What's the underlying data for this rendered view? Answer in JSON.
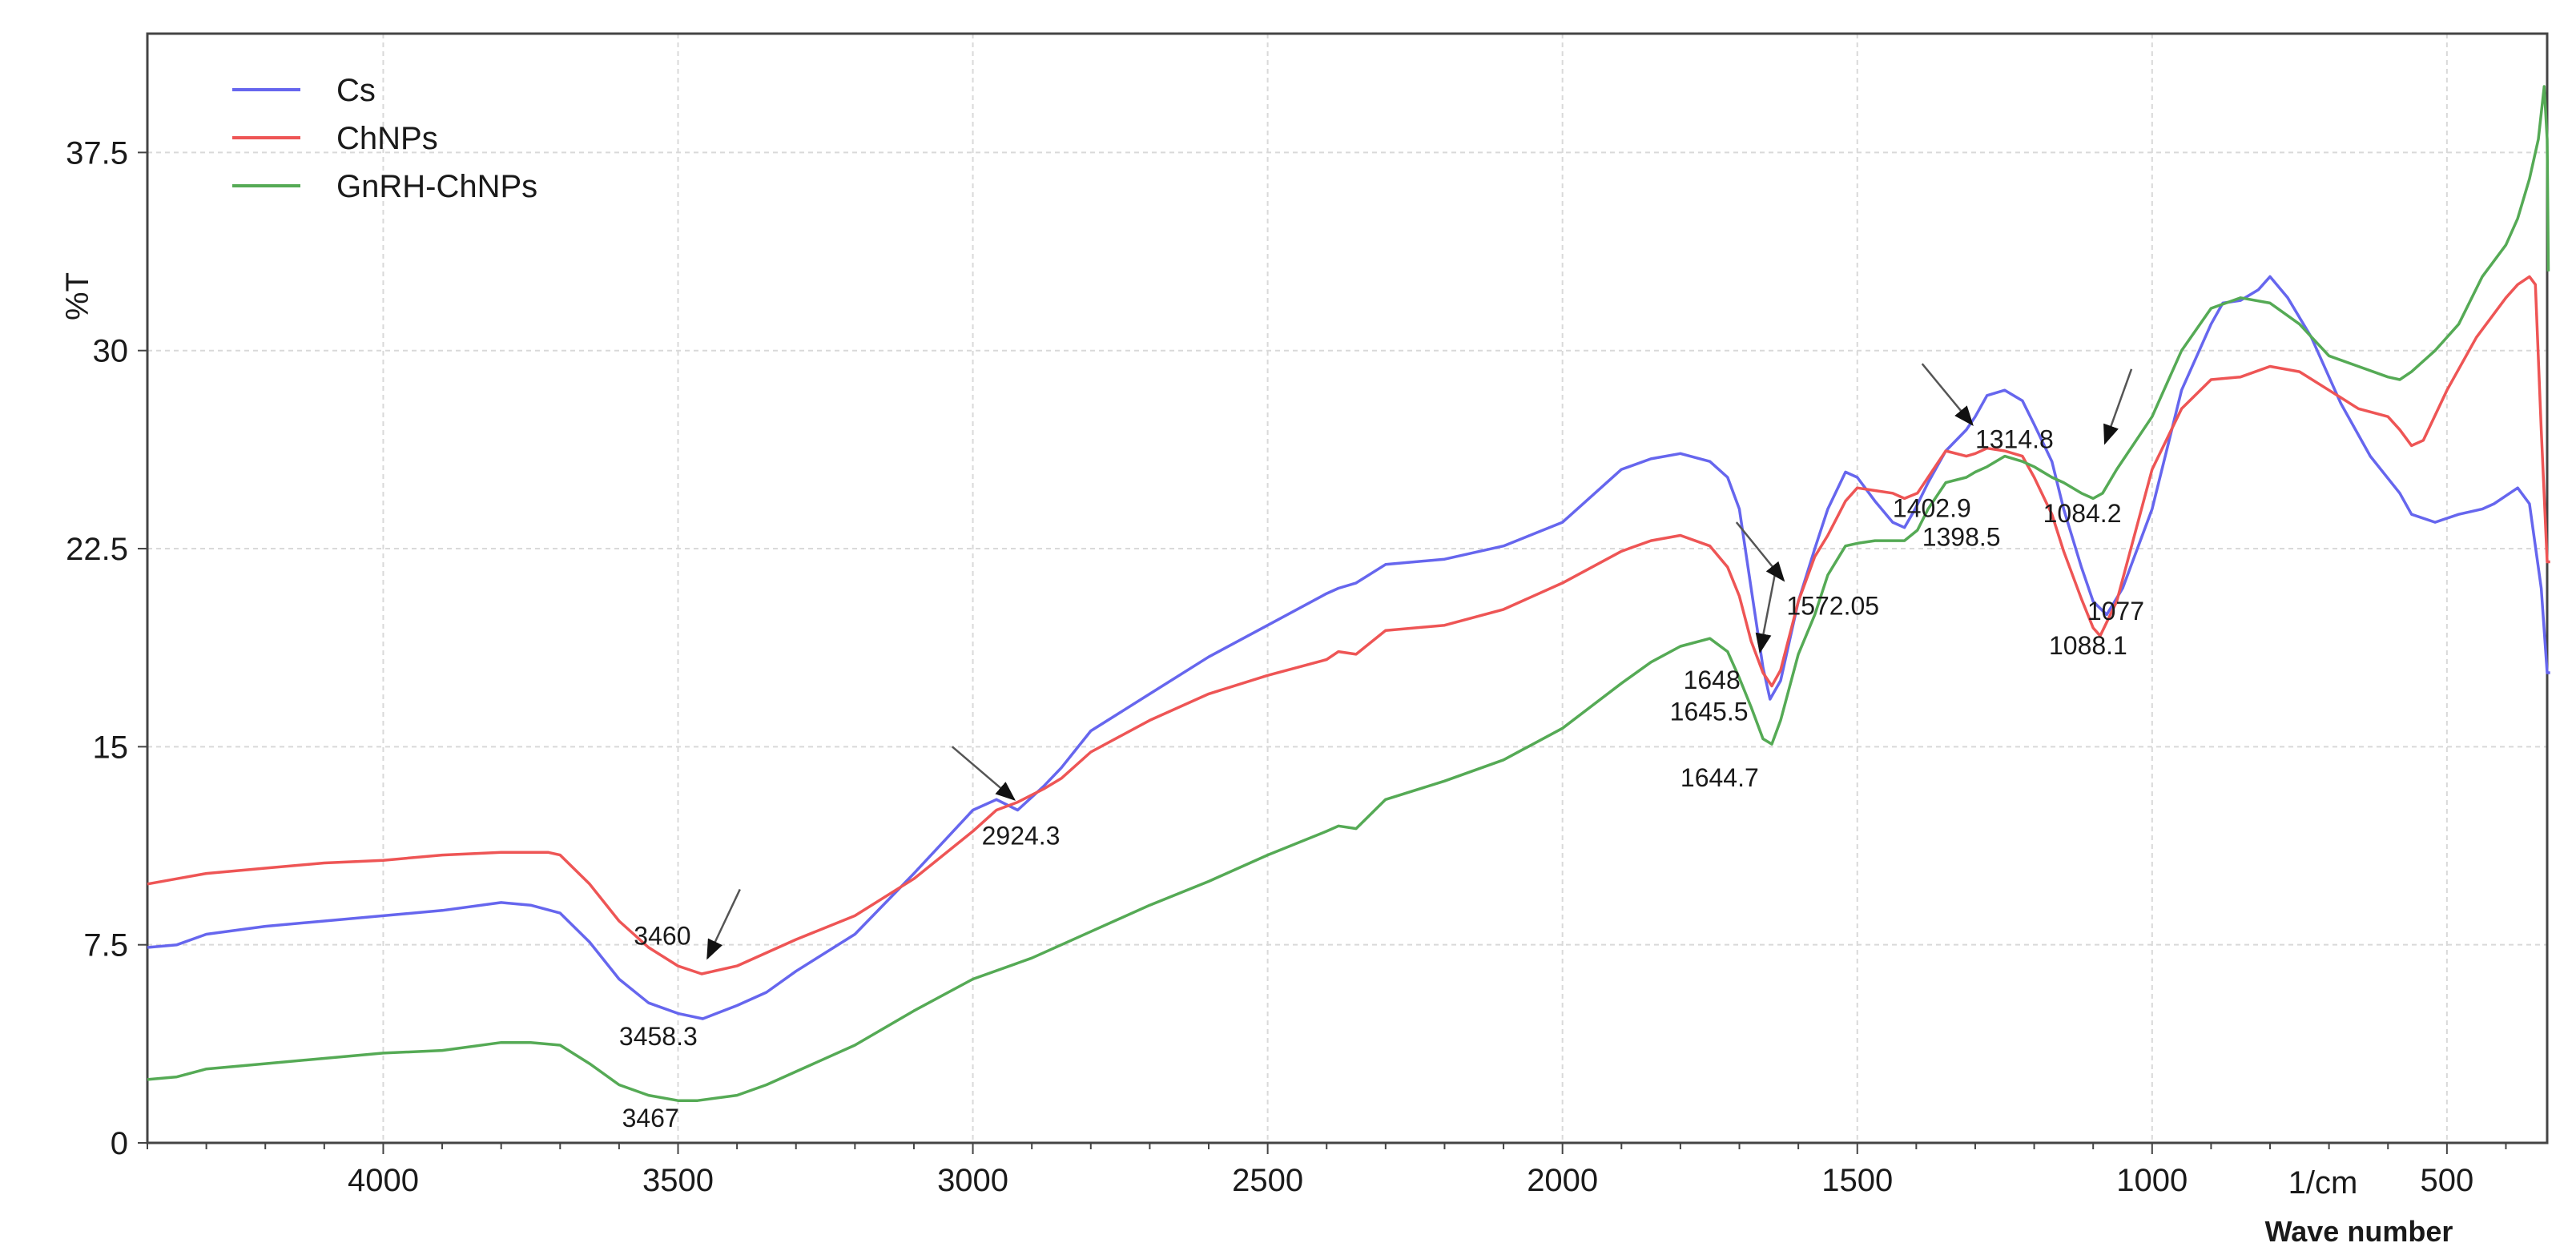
{
  "chart_data": {
    "type": "line",
    "ylabel": "%T",
    "xlabel": "Wave number",
    "x_unit": "1/cm",
    "xlim": [
      4400,
      330
    ],
    "ylim": [
      0,
      42
    ],
    "y_ticks": [
      0,
      7.5,
      15,
      22.5,
      30,
      37.5
    ],
    "y_tick_labels": [
      "0",
      "7.5",
      "15",
      "22.5",
      "30",
      "37.5"
    ],
    "x_ticks": [
      4000,
      3500,
      3000,
      2500,
      2000,
      1500,
      1000,
      500
    ],
    "x_tick_labels": [
      "4000",
      "3500",
      "3000",
      "2500",
      "2000",
      "1500",
      "1000",
      "500"
    ],
    "legend_position": "top-left",
    "grid": true,
    "series": [
      {
        "name": "Cs",
        "color": "#6666ee",
        "points": [
          [
            4400,
            7.4
          ],
          [
            4350,
            7.5
          ],
          [
            4300,
            7.9
          ],
          [
            4200,
            8.2
          ],
          [
            4100,
            8.4
          ],
          [
            4000,
            8.6
          ],
          [
            3900,
            8.8
          ],
          [
            3800,
            9.1
          ],
          [
            3750,
            9.0
          ],
          [
            3700,
            8.7
          ],
          [
            3650,
            7.6
          ],
          [
            3600,
            6.2
          ],
          [
            3550,
            5.3
          ],
          [
            3500,
            4.9
          ],
          [
            3458,
            4.7
          ],
          [
            3400,
            5.2
          ],
          [
            3350,
            5.7
          ],
          [
            3300,
            6.5
          ],
          [
            3200,
            7.9
          ],
          [
            3100,
            10.2
          ],
          [
            3050,
            11.4
          ],
          [
            3000,
            12.6
          ],
          [
            2960,
            13.0
          ],
          [
            2924,
            12.6
          ],
          [
            2880,
            13.5
          ],
          [
            2850,
            14.2
          ],
          [
            2800,
            15.6
          ],
          [
            2700,
            17.0
          ],
          [
            2600,
            18.4
          ],
          [
            2500,
            19.6
          ],
          [
            2400,
            20.8
          ],
          [
            2380,
            21.0
          ],
          [
            2350,
            21.2
          ],
          [
            2300,
            21.9
          ],
          [
            2200,
            22.1
          ],
          [
            2100,
            22.6
          ],
          [
            2000,
            23.5
          ],
          [
            1900,
            25.5
          ],
          [
            1850,
            25.9
          ],
          [
            1800,
            26.1
          ],
          [
            1750,
            25.8
          ],
          [
            1720,
            25.2
          ],
          [
            1700,
            24.0
          ],
          [
            1680,
            21.0
          ],
          [
            1660,
            18.0
          ],
          [
            1648,
            16.8
          ],
          [
            1630,
            17.5
          ],
          [
            1600,
            20.5
          ],
          [
            1572,
            22.5
          ],
          [
            1550,
            24.0
          ],
          [
            1520,
            25.4
          ],
          [
            1500,
            25.2
          ],
          [
            1470,
            24.3
          ],
          [
            1440,
            23.5
          ],
          [
            1420,
            23.3
          ],
          [
            1402,
            24.0
          ],
          [
            1380,
            25.0
          ],
          [
            1350,
            26.2
          ],
          [
            1315,
            27.0
          ],
          [
            1300,
            27.5
          ],
          [
            1280,
            28.3
          ],
          [
            1250,
            28.5
          ],
          [
            1220,
            28.1
          ],
          [
            1200,
            27.2
          ],
          [
            1170,
            25.8
          ],
          [
            1150,
            24.0
          ],
          [
            1120,
            21.8
          ],
          [
            1100,
            20.5
          ],
          [
            1077,
            20.0
          ],
          [
            1050,
            21.0
          ],
          [
            1000,
            24.0
          ],
          [
            950,
            28.5
          ],
          [
            900,
            31.0
          ],
          [
            880,
            31.8
          ],
          [
            850,
            31.9
          ],
          [
            820,
            32.3
          ],
          [
            800,
            32.8
          ],
          [
            770,
            32.0
          ],
          [
            730,
            30.5
          ],
          [
            680,
            28.0
          ],
          [
            630,
            26.0
          ],
          [
            580,
            24.6
          ],
          [
            560,
            23.8
          ],
          [
            520,
            23.5
          ],
          [
            480,
            23.8
          ],
          [
            440,
            24.0
          ],
          [
            420,
            24.2
          ],
          [
            400,
            24.5
          ],
          [
            380,
            24.8
          ],
          [
            360,
            24.2
          ],
          [
            340,
            21.0
          ],
          [
            330,
            17.8
          ],
          [
            325,
            17.8
          ]
        ]
      },
      {
        "name": "ChNPs",
        "color": "#ee5555",
        "points": [
          [
            4400,
            9.8
          ],
          [
            4350,
            10.0
          ],
          [
            4300,
            10.2
          ],
          [
            4200,
            10.4
          ],
          [
            4100,
            10.6
          ],
          [
            4000,
            10.7
          ],
          [
            3900,
            10.9
          ],
          [
            3800,
            11.0
          ],
          [
            3720,
            11.0
          ],
          [
            3700,
            10.9
          ],
          [
            3650,
            9.8
          ],
          [
            3600,
            8.4
          ],
          [
            3550,
            7.4
          ],
          [
            3500,
            6.7
          ],
          [
            3460,
            6.4
          ],
          [
            3400,
            6.7
          ],
          [
            3350,
            7.2
          ],
          [
            3300,
            7.7
          ],
          [
            3200,
            8.6
          ],
          [
            3100,
            10.0
          ],
          [
            3000,
            11.8
          ],
          [
            2960,
            12.6
          ],
          [
            2924,
            12.9
          ],
          [
            2880,
            13.4
          ],
          [
            2850,
            13.8
          ],
          [
            2800,
            14.8
          ],
          [
            2700,
            16.0
          ],
          [
            2600,
            17.0
          ],
          [
            2500,
            17.7
          ],
          [
            2400,
            18.3
          ],
          [
            2380,
            18.6
          ],
          [
            2350,
            18.5
          ],
          [
            2300,
            19.4
          ],
          [
            2200,
            19.6
          ],
          [
            2100,
            20.2
          ],
          [
            2000,
            21.2
          ],
          [
            1900,
            22.4
          ],
          [
            1850,
            22.8
          ],
          [
            1800,
            23.0
          ],
          [
            1750,
            22.6
          ],
          [
            1720,
            21.8
          ],
          [
            1700,
            20.7
          ],
          [
            1680,
            19.0
          ],
          [
            1660,
            17.8
          ],
          [
            1645,
            17.3
          ],
          [
            1630,
            17.9
          ],
          [
            1600,
            20.5
          ],
          [
            1572,
            22.2
          ],
          [
            1550,
            23.0
          ],
          [
            1520,
            24.3
          ],
          [
            1500,
            24.8
          ],
          [
            1470,
            24.7
          ],
          [
            1440,
            24.6
          ],
          [
            1420,
            24.4
          ],
          [
            1398,
            24.6
          ],
          [
            1380,
            25.2
          ],
          [
            1350,
            26.2
          ],
          [
            1315,
            26.0
          ],
          [
            1300,
            26.1
          ],
          [
            1280,
            26.3
          ],
          [
            1250,
            26.2
          ],
          [
            1220,
            26.0
          ],
          [
            1200,
            25.2
          ],
          [
            1170,
            23.8
          ],
          [
            1150,
            22.4
          ],
          [
            1120,
            20.6
          ],
          [
            1100,
            19.5
          ],
          [
            1088,
            19.2
          ],
          [
            1060,
            20.5
          ],
          [
            1000,
            25.5
          ],
          [
            950,
            27.8
          ],
          [
            900,
            28.9
          ],
          [
            850,
            29.0
          ],
          [
            800,
            29.4
          ],
          [
            750,
            29.2
          ],
          [
            700,
            28.5
          ],
          [
            650,
            27.8
          ],
          [
            600,
            27.5
          ],
          [
            580,
            27.0
          ],
          [
            560,
            26.4
          ],
          [
            540,
            26.6
          ],
          [
            500,
            28.5
          ],
          [
            450,
            30.5
          ],
          [
            400,
            32.0
          ],
          [
            380,
            32.5
          ],
          [
            360,
            32.8
          ],
          [
            350,
            32.5
          ],
          [
            340,
            27.0
          ],
          [
            330,
            22.0
          ],
          [
            325,
            22.0
          ]
        ]
      },
      {
        "name": "GnRH-ChNPs",
        "color": "#55aa55",
        "points": [
          [
            4400,
            2.4
          ],
          [
            4350,
            2.5
          ],
          [
            4300,
            2.8
          ],
          [
            4200,
            3.0
          ],
          [
            4100,
            3.2
          ],
          [
            4000,
            3.4
          ],
          [
            3900,
            3.5
          ],
          [
            3800,
            3.8
          ],
          [
            3750,
            3.8
          ],
          [
            3700,
            3.7
          ],
          [
            3650,
            3.0
          ],
          [
            3600,
            2.2
          ],
          [
            3550,
            1.8
          ],
          [
            3500,
            1.6
          ],
          [
            3467,
            1.6
          ],
          [
            3400,
            1.8
          ],
          [
            3350,
            2.2
          ],
          [
            3300,
            2.7
          ],
          [
            3200,
            3.7
          ],
          [
            3100,
            5.0
          ],
          [
            3000,
            6.2
          ],
          [
            2900,
            7.0
          ],
          [
            2800,
            8.0
          ],
          [
            2700,
            9.0
          ],
          [
            2600,
            9.9
          ],
          [
            2500,
            10.9
          ],
          [
            2400,
            11.8
          ],
          [
            2380,
            12.0
          ],
          [
            2350,
            11.9
          ],
          [
            2300,
            13.0
          ],
          [
            2200,
            13.7
          ],
          [
            2100,
            14.5
          ],
          [
            2000,
            15.7
          ],
          [
            1900,
            17.4
          ],
          [
            1850,
            18.2
          ],
          [
            1800,
            18.8
          ],
          [
            1750,
            19.1
          ],
          [
            1720,
            18.6
          ],
          [
            1700,
            17.6
          ],
          [
            1680,
            16.5
          ],
          [
            1660,
            15.3
          ],
          [
            1645,
            15.1
          ],
          [
            1630,
            16.0
          ],
          [
            1600,
            18.5
          ],
          [
            1572,
            20.0
          ],
          [
            1550,
            21.5
          ],
          [
            1520,
            22.6
          ],
          [
            1500,
            22.7
          ],
          [
            1470,
            22.8
          ],
          [
            1440,
            22.8
          ],
          [
            1420,
            22.8
          ],
          [
            1398,
            23.2
          ],
          [
            1380,
            24.0
          ],
          [
            1350,
            25.0
          ],
          [
            1315,
            25.2
          ],
          [
            1300,
            25.4
          ],
          [
            1280,
            25.6
          ],
          [
            1250,
            26.0
          ],
          [
            1220,
            25.8
          ],
          [
            1200,
            25.6
          ],
          [
            1170,
            25.2
          ],
          [
            1150,
            25.0
          ],
          [
            1120,
            24.6
          ],
          [
            1100,
            24.4
          ],
          [
            1084,
            24.6
          ],
          [
            1060,
            25.5
          ],
          [
            1000,
            27.5
          ],
          [
            950,
            30.0
          ],
          [
            900,
            31.6
          ],
          [
            850,
            32.0
          ],
          [
            800,
            31.8
          ],
          [
            750,
            31.0
          ],
          [
            700,
            29.8
          ],
          [
            650,
            29.4
          ],
          [
            600,
            29.0
          ],
          [
            580,
            28.9
          ],
          [
            560,
            29.2
          ],
          [
            520,
            30.0
          ],
          [
            480,
            31.0
          ],
          [
            440,
            32.8
          ],
          [
            400,
            34.0
          ],
          [
            380,
            35.0
          ],
          [
            360,
            36.5
          ],
          [
            345,
            38.0
          ],
          [
            335,
            40.0
          ],
          [
            330,
            38.0
          ],
          [
            328,
            33.0
          ]
        ]
      }
    ],
    "annotations": [
      {
        "text": "3460",
        "x": 3575,
        "y": 7.5,
        "ax1": 3395,
        "ay1": 9.6,
        "ax2": 3450,
        "ay2": 7.0
      },
      {
        "text": "3458.3",
        "x": 3600,
        "y": 3.7
      },
      {
        "text": "3467",
        "x": 3595,
        "y": 0.6
      },
      {
        "text": "2924.3",
        "x": 2985,
        "y": 11.3,
        "ax1": 3035,
        "ay1": 15.0,
        "ax2": 2930,
        "ay2": 13.0
      },
      {
        "text": "1648",
        "x": 1795,
        "y": 17.2,
        "ax1": 1640,
        "ay1": 21.5,
        "ax2": 1665,
        "ay2": 18.6
      },
      {
        "text": "1645.5",
        "x": 1818,
        "y": 16.0
      },
      {
        "text": "1644.7",
        "x": 1800,
        "y": 13.5
      },
      {
        "text": "1572.05",
        "x": 1620,
        "y": 20.0,
        "ax1": 1705,
        "ay1": 23.5,
        "ax2": 1625,
        "ay2": 21.3
      },
      {
        "text": "1402.9",
        "x": 1440,
        "y": 23.7
      },
      {
        "text": "1398.5",
        "x": 1390,
        "y": 22.6
      },
      {
        "text": "1314.8",
        "x": 1300,
        "y": 26.3,
        "ax1": 1390,
        "ay1": 29.5,
        "ax2": 1305,
        "ay2": 27.2
      },
      {
        "text": "1084.2",
        "x": 1185,
        "y": 23.5,
        "ax1": 1035,
        "ay1": 29.3,
        "ax2": 1080,
        "ay2": 26.5
      },
      {
        "text": "1077",
        "x": 1110,
        "y": 19.8
      },
      {
        "text": "1088.1",
        "x": 1175,
        "y": 18.5
      }
    ]
  }
}
